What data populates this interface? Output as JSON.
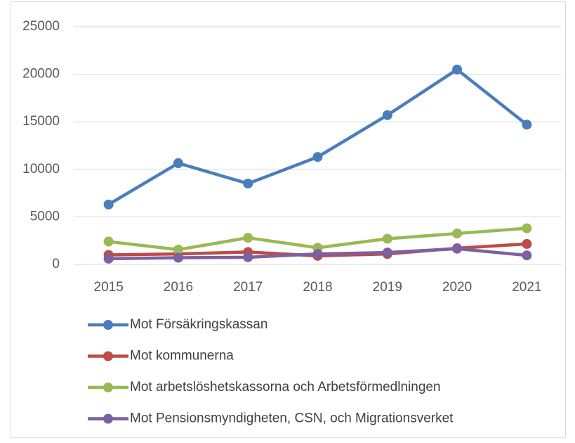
{
  "chart_data": {
    "type": "line",
    "categories": [
      "2015",
      "2016",
      "2017",
      "2018",
      "2019",
      "2020",
      "2021"
    ],
    "series": [
      {
        "name": "Mot Försäkringskassan",
        "color": "#4a7ebb",
        "values": [
          6300,
          10650,
          8500,
          11300,
          15700,
          20500,
          14700
        ]
      },
      {
        "name": "Mot kommunerna",
        "color": "#be4b48",
        "values": [
          1000,
          1100,
          1300,
          900,
          1100,
          1700,
          2150
        ]
      },
      {
        "name": "Mot arbetslöshetskassorna och Arbetsförmedlningen",
        "color": "#98b954",
        "values": [
          2400,
          1550,
          2800,
          1750,
          2700,
          3250,
          3800
        ]
      },
      {
        "name": "Mot Pensionsmyndigheten, CSN, och Migrationsverket",
        "color": "#7d60a0",
        "values": [
          600,
          700,
          750,
          1100,
          1250,
          1650,
          950
        ]
      }
    ],
    "ylim": [
      0,
      25000
    ],
    "yticks": [
      0,
      5000,
      10000,
      15000,
      20000,
      25000
    ],
    "grid": true,
    "legend": "bottom"
  }
}
